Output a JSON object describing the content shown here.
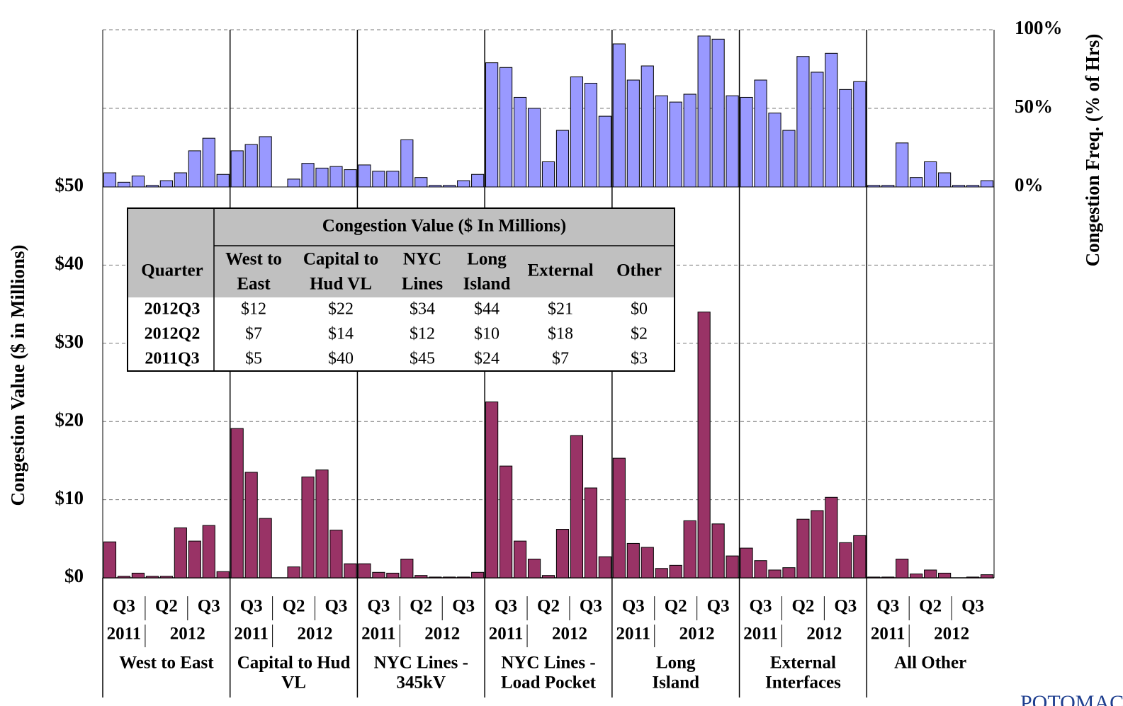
{
  "chart_data": {
    "type": "bar",
    "ylabel": "Congestion Value ($ in Millions)",
    "y2label": "Congestion Freq. (% of Hrs)",
    "ylim": [
      0,
      50
    ],
    "yticks": [
      {
        "value": 0,
        "label": "$0"
      },
      {
        "value": 10,
        "label": "$10"
      },
      {
        "value": 20,
        "label": "$20"
      },
      {
        "value": 30,
        "label": "$30"
      },
      {
        "value": 40,
        "label": "$40"
      },
      {
        "value": 50,
        "label": "$50"
      }
    ],
    "y2lim": [
      0,
      100
    ],
    "y2ticks": [
      {
        "value": 0,
        "label": "0%"
      },
      {
        "value": 50,
        "label": "50%"
      },
      {
        "value": 100,
        "label": "100%"
      }
    ],
    "grid": true,
    "value_color": "#993366",
    "freq_color": "#9999ff",
    "quarter_labels": [
      "Q3",
      "Q2",
      "Q3"
    ],
    "year_labels": [
      "2011",
      "2012"
    ],
    "groups": [
      {
        "label": [
          "West to East"
        ],
        "values": [
          4.6,
          0.2,
          0.6,
          0.2,
          0.2,
          6.4,
          4.7,
          6.7,
          0.8
        ],
        "freq": [
          9,
          3,
          7,
          1,
          4,
          9,
          23,
          31,
          8
        ]
      },
      {
        "label": [
          "Capital to Hud",
          "VL"
        ],
        "values": [
          19.1,
          13.5,
          7.6,
          0,
          1.4,
          12.9,
          13.8,
          6.1,
          1.8
        ],
        "freq": [
          23,
          27,
          32,
          0,
          5,
          15,
          12,
          13,
          11
        ]
      },
      {
        "label": [
          "NYC Lines -",
          "345kV"
        ],
        "values": [
          1.8,
          0.7,
          0.6,
          2.4,
          0.3,
          0.1,
          0.1,
          0.1,
          0.7
        ],
        "freq": [
          14,
          10,
          10,
          30,
          6,
          1,
          1,
          4,
          8
        ]
      },
      {
        "label": [
          "NYC Lines -",
          "Load Pocket"
        ],
        "values": [
          22.5,
          14.3,
          4.7,
          2.4,
          0.3,
          6.2,
          18.2,
          11.5,
          2.7
        ],
        "freq": [
          79,
          76,
          57,
          50,
          16,
          36,
          70,
          66,
          45
        ]
      },
      {
        "label": [
          "Long",
          "Island"
        ],
        "values": [
          15.3,
          4.4,
          3.9,
          1.2,
          1.6,
          7.3,
          34.0,
          6.9,
          2.8
        ],
        "freq": [
          91,
          68,
          77,
          58,
          54,
          59,
          96,
          94,
          58
        ]
      },
      {
        "label": [
          "External",
          "Interfaces"
        ],
        "values": [
          3.8,
          2.2,
          1.0,
          1.3,
          7.5,
          8.6,
          10.3,
          4.5,
          5.4
        ],
        "freq": [
          57,
          68,
          47,
          36,
          83,
          73,
          85,
          62,
          67
        ]
      },
      {
        "label": [
          "All Other"
        ],
        "values": [
          0.1,
          0.1,
          2.4,
          0.5,
          1.0,
          0.6,
          0.0,
          0.1,
          0.4
        ],
        "freq": [
          1,
          1,
          28,
          6,
          16,
          9,
          1,
          1,
          4
        ]
      }
    ],
    "table": {
      "title": "Congestion Value ($ In Millions)",
      "corner": "Quarter",
      "columns": [
        [
          "West to",
          "East"
        ],
        [
          "Capital to",
          "Hud VL"
        ],
        [
          "NYC",
          "Lines"
        ],
        [
          "Long",
          "Island"
        ],
        [
          "External"
        ],
        [
          "Other"
        ]
      ],
      "rows": [
        [
          "2012Q3",
          "$12",
          "$22",
          "$34",
          "$44",
          "$21",
          "$0"
        ],
        [
          "2012Q2",
          "$7",
          "$14",
          "$12",
          "$10",
          "$18",
          "$2"
        ],
        [
          "2011Q3",
          "$5",
          "$40",
          "$45",
          "$24",
          "$7",
          "$3"
        ]
      ]
    },
    "logo": "POTOMAC"
  }
}
